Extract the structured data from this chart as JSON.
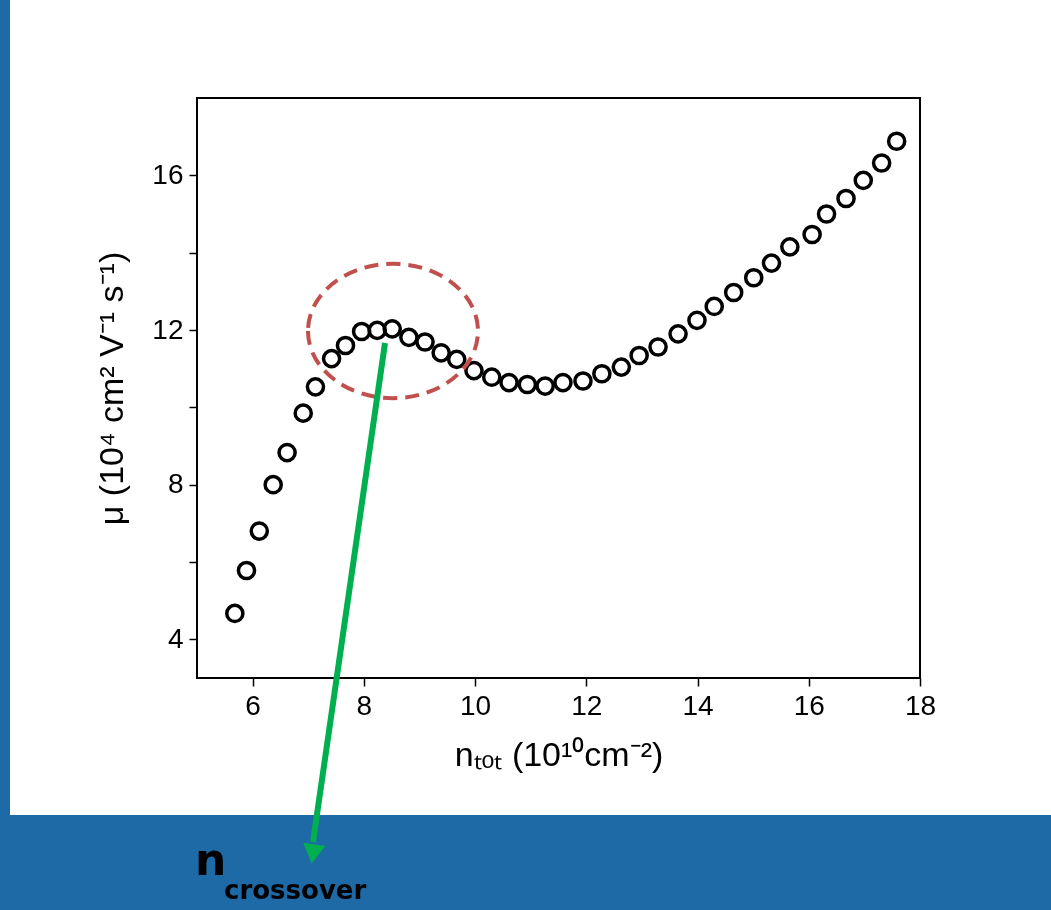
{
  "chart_data": {
    "type": "scatter",
    "xlabel": "nₜₒₜ (10¹⁰cm⁻²)",
    "ylabel": "μ (10⁴ cm² V⁻¹ s⁻¹)",
    "x": [
      5.68,
      5.89,
      6.12,
      6.37,
      6.62,
      6.91,
      7.13,
      7.42,
      7.67,
      7.96,
      8.24,
      8.51,
      8.81,
      9.1,
      9.39,
      9.67,
      9.98,
      10.3,
      10.61,
      10.94,
      11.26,
      11.58,
      11.94,
      12.28,
      12.63,
      12.95,
      13.29,
      13.65,
      13.99,
      14.3,
      14.65,
      15.01,
      15.33,
      15.66,
      16.06,
      16.32,
      16.67,
      16.98,
      17.31,
      17.58
    ],
    "series": [
      {
        "color": "#000000",
        "values": [
          4.67,
          5.78,
          6.8,
          8.0,
          8.83,
          9.85,
          10.53,
          11.26,
          11.6,
          11.96,
          11.99,
          12.03,
          11.81,
          11.69,
          11.41,
          11.24,
          10.95,
          10.78,
          10.64,
          10.59,
          10.55,
          10.64,
          10.68,
          10.87,
          11.04,
          11.34,
          11.56,
          11.9,
          12.25,
          12.61,
          12.97,
          13.35,
          13.73,
          14.15,
          14.47,
          15.0,
          15.4,
          15.87,
          16.32,
          16.88
        ]
      }
    ],
    "xlim": [
      5,
      18
    ],
    "xticks": [
      6,
      8,
      10,
      12,
      14,
      16,
      18
    ],
    "ylim": [
      3,
      18
    ],
    "yticks": [
      4,
      {
        "value": 6,
        "label": null
      },
      8,
      {
        "value": 10,
        "label": null
      },
      12,
      {
        "value": 14,
        "label": null
      },
      16
    ],
    "grid": false,
    "marker": "circle",
    "annotations": [
      "n$_{crossover}$"
    ]
  }
}
